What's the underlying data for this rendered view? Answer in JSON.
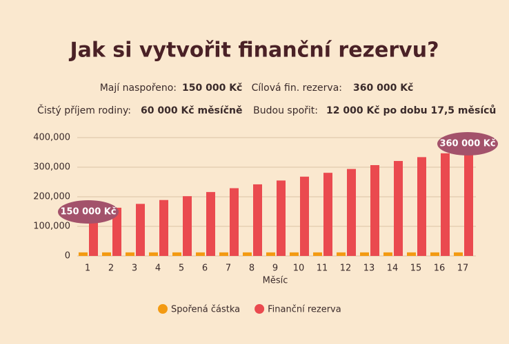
{
  "info": [
    {
      "label": "Mají naspořeno:",
      "value": "150 000 Kč"
    },
    {
      "label": "Cílová fin. rezerva:",
      "value": "360 000 Kč"
    },
    {
      "label": "Čistý příjem rodiny:",
      "value": "60 000 Kč měsíčně"
    },
    {
      "label": "Budou spořit:",
      "value": "12 000 Kč po dobu 17,5 měsíců"
    }
  ],
  "chart_data": {
    "type": "bar",
    "title": "Jak si vytvořit finanční rezervu?",
    "x_label": "Měsíc",
    "categories": [
      "1",
      "2",
      "3",
      "4",
      "5",
      "6",
      "7",
      "8",
      "9",
      "10",
      "11",
      "12",
      "13",
      "14",
      "15",
      "16",
      "17"
    ],
    "series": [
      {
        "name": "Spořená částka",
        "color": "#f39a12",
        "values": [
          12000,
          12000,
          12000,
          12000,
          12000,
          12000,
          12000,
          12000,
          12000,
          12000,
          12000,
          12000,
          12000,
          12000,
          12000,
          12000,
          12000
        ]
      },
      {
        "name": "Finanční rezerva",
        "color": "#ea4a4f",
        "values": [
          150000,
          163000,
          176000,
          189000,
          202000,
          216000,
          229000,
          242000,
          255000,
          268000,
          281000,
          294000,
          307000,
          321000,
          334000,
          347000,
          360000
        ]
      }
    ],
    "annotations": [
      "150 000 Kč",
      "360 000 Kč"
    ],
    "ylim": [
      0,
      400000
    ],
    "yticks": [
      0,
      {
        "value": 100000,
        "label": "100,000"
      },
      {
        "value": 200000,
        "label": "200,000"
      },
      {
        "value": 300000,
        "label": "300,000"
      },
      {
        "value": 400000,
        "label": "400,000"
      }
    ],
    "grid": true,
    "legend": "bottom"
  }
}
